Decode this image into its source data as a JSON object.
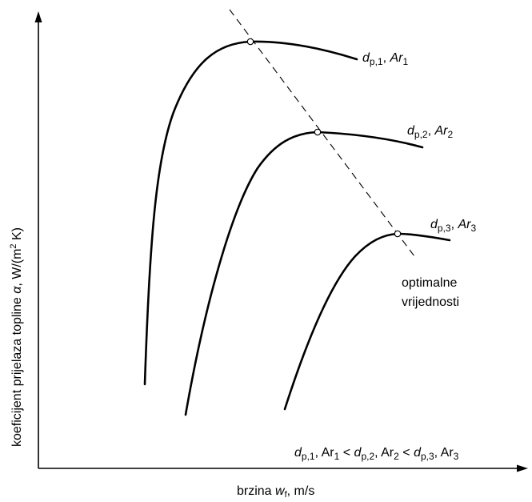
{
  "axes": {
    "x_label": {
      "main": "brzina ",
      "symbol": "w",
      "sub": "f",
      "unit": ", m/s"
    },
    "y_label": {
      "main": "koeficijent prijelaza topline ",
      "symbol": "α",
      "unit": ", W/(m",
      "sup": "2",
      "end": " K)"
    }
  },
  "curves": [
    {
      "d": "d",
      "d_sub": "p,1",
      "sep": ", ",
      "ar": "Ar",
      "ar_sub": "1"
    },
    {
      "d": "d",
      "d_sub": "p,2",
      "sep": ", ",
      "ar": "Ar",
      "ar_sub": "2"
    },
    {
      "d": "d",
      "d_sub": "p,3",
      "sep": ", ",
      "ar": "Ar",
      "ar_sub": "3"
    }
  ],
  "optimum_label": {
    "line1": "optimalne",
    "line2": "vrijednosti"
  },
  "relation": {
    "d1": "d",
    "d1_sub": "p,1",
    "ar1": ", Ar",
    "ar1_sub": "1",
    "lt1": " < ",
    "d2": "d",
    "d2_sub": "p,2",
    "ar2": ", Ar",
    "ar2_sub": "2",
    "lt2": " < ",
    "d3": "d",
    "d3_sub": "p,3",
    "ar3": ", Ar",
    "ar3_sub": "3"
  }
}
